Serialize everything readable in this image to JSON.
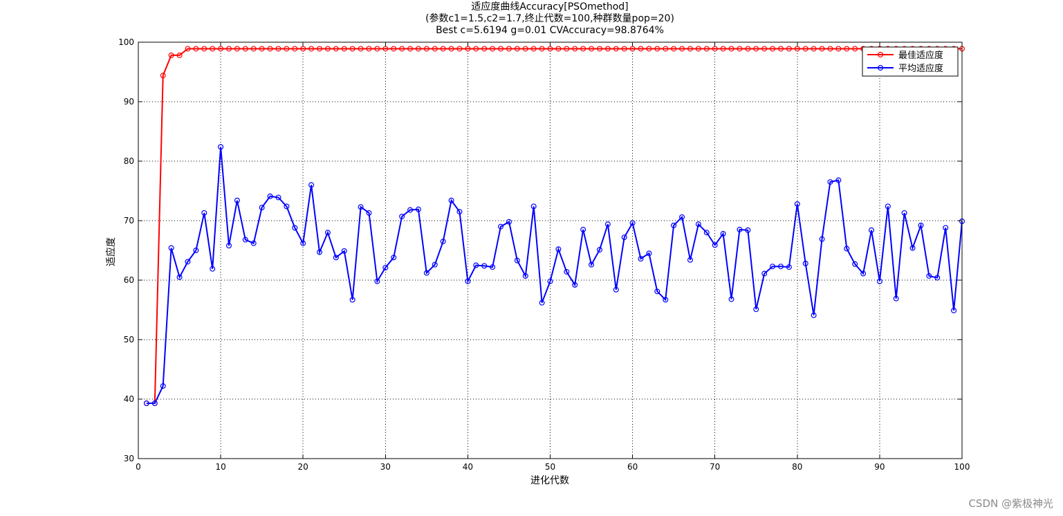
{
  "chart_data": {
    "type": "line",
    "title_lines": [
      "适应度曲线Accuracy[PSOmethod]",
      "(参数c1=1.5,c2=1.7,终止代数=100,种群数量pop=20)",
      "Best c=5.6194 g=0.01 CVAccuracy=98.8764%"
    ],
    "xlabel": "进化代数",
    "ylabel": "适应度",
    "xlim": [
      0,
      100
    ],
    "ylim": [
      30,
      100
    ],
    "xticks": [
      0,
      10,
      20,
      30,
      40,
      50,
      60,
      70,
      80,
      90,
      100
    ],
    "yticks": [
      30,
      40,
      50,
      60,
      70,
      80,
      90,
      100
    ],
    "grid": true,
    "legend_position": "top-right",
    "x": [
      1,
      2,
      3,
      4,
      5,
      6,
      7,
      8,
      9,
      10,
      11,
      12,
      13,
      14,
      15,
      16,
      17,
      18,
      19,
      20,
      21,
      22,
      23,
      24,
      25,
      26,
      27,
      28,
      29,
      30,
      31,
      32,
      33,
      34,
      35,
      36,
      37,
      38,
      39,
      40,
      41,
      42,
      43,
      44,
      45,
      46,
      47,
      48,
      49,
      50,
      51,
      52,
      53,
      54,
      55,
      56,
      57,
      58,
      59,
      60,
      61,
      62,
      63,
      64,
      65,
      66,
      67,
      68,
      69,
      70,
      71,
      72,
      73,
      74,
      75,
      76,
      77,
      78,
      79,
      80,
      81,
      82,
      83,
      84,
      85,
      86,
      87,
      88,
      89,
      90,
      91,
      92,
      93,
      94,
      95,
      96,
      97,
      98,
      99,
      100
    ],
    "series": [
      {
        "name": "最佳适应度",
        "color": "#ff0000",
        "values": [
          39.3,
          39.3,
          94.4,
          97.8,
          97.8,
          98.9,
          98.9,
          98.9,
          98.9,
          98.9,
          98.9,
          98.9,
          98.9,
          98.9,
          98.9,
          98.9,
          98.9,
          98.9,
          98.9,
          98.9,
          98.9,
          98.9,
          98.9,
          98.9,
          98.9,
          98.9,
          98.9,
          98.9,
          98.9,
          98.9,
          98.9,
          98.9,
          98.9,
          98.9,
          98.9,
          98.9,
          98.9,
          98.9,
          98.9,
          98.9,
          98.9,
          98.9,
          98.9,
          98.9,
          98.9,
          98.9,
          98.9,
          98.9,
          98.9,
          98.9,
          98.9,
          98.9,
          98.9,
          98.9,
          98.9,
          98.9,
          98.9,
          98.9,
          98.9,
          98.9,
          98.9,
          98.9,
          98.9,
          98.9,
          98.9,
          98.9,
          98.9,
          98.9,
          98.9,
          98.9,
          98.9,
          98.9,
          98.9,
          98.9,
          98.9,
          98.9,
          98.9,
          98.9,
          98.9,
          98.9,
          98.9,
          98.9,
          98.9,
          98.9,
          98.9,
          98.9,
          98.9,
          98.9,
          98.9,
          98.9,
          98.9,
          98.9,
          98.9,
          98.9,
          98.9,
          98.9,
          98.9,
          98.9,
          98.9,
          98.9
        ]
      },
      {
        "name": "平均适应度",
        "color": "#0000ff",
        "values": [
          39.3,
          39.3,
          42.2,
          65.4,
          60.5,
          63.1,
          65.0,
          71.3,
          61.9,
          82.4,
          65.8,
          73.4,
          66.8,
          66.2,
          72.2,
          74.1,
          73.9,
          72.4,
          68.8,
          66.2,
          76.0,
          64.7,
          68.0,
          63.8,
          64.9,
          56.7,
          72.3,
          71.3,
          59.8,
          62.1,
          63.8,
          70.7,
          71.8,
          71.9,
          61.2,
          62.6,
          66.5,
          73.4,
          71.5,
          59.8,
          62.5,
          62.4,
          62.2,
          69.0,
          69.8,
          63.3,
          60.7,
          72.4,
          56.2,
          59.8,
          65.2,
          61.4,
          59.2,
          68.5,
          62.6,
          65.1,
          69.4,
          58.4,
          67.2,
          69.6,
          63.6,
          64.5,
          58.1,
          56.7,
          69.2,
          70.6,
          63.4,
          69.4,
          68.0,
          65.9,
          67.8,
          56.8,
          68.5,
          68.4,
          55.1,
          61.1,
          62.3,
          62.3,
          62.2,
          72.8,
          62.8,
          54.1,
          66.9,
          76.5,
          76.8,
          65.3,
          62.7,
          61.1,
          68.4,
          59.8,
          72.4,
          56.9,
          71.3,
          65.4,
          69.2,
          60.7,
          60.4,
          68.8,
          54.9,
          69.9
        ]
      }
    ]
  },
  "watermark": "CSDN @紫极神光"
}
